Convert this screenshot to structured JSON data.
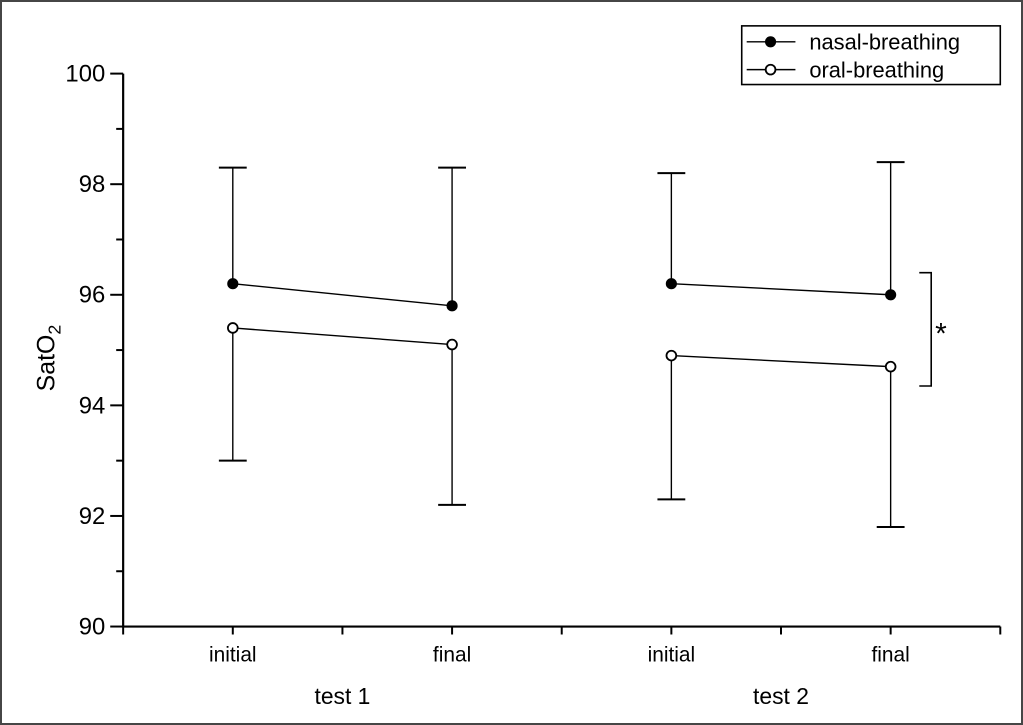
{
  "figure": {
    "background_color": "#ffffff",
    "border_color": "#464646",
    "ink_color": "#000000"
  },
  "chart_data": {
    "type": "line",
    "title": "",
    "ylabel": "SatO",
    "ylabel_subscript": "2",
    "xlabel": "",
    "ylim": [
      90,
      100
    ],
    "y_major_ticks": [
      90,
      92,
      94,
      96,
      98,
      100
    ],
    "y_minor_ticks": [
      91,
      93,
      95,
      97,
      99
    ],
    "x_range": [
      0,
      8
    ],
    "x_ticks": [
      0,
      1,
      2,
      3,
      4,
      5,
      6,
      7,
      8
    ],
    "grid": false,
    "x_tick_labels": [
      {
        "pos": 1,
        "label": "initial"
      },
      {
        "pos": 3,
        "label": "final"
      },
      {
        "pos": 5,
        "label": "initial"
      },
      {
        "pos": 7,
        "label": "final"
      }
    ],
    "x_group_labels": [
      {
        "pos": 2,
        "label": "test 1"
      },
      {
        "pos": 6,
        "label": "test 2"
      }
    ],
    "series": [
      {
        "name": "nasal-breathing",
        "marker": "filled-circle",
        "color": "#000000",
        "error_direction": "up",
        "segments": [
          {
            "group": "test 1",
            "x": [
              1,
              3
            ],
            "y": [
              96.2,
              95.8
            ],
            "error_cap_values": [
              98.3,
              98.3
            ]
          },
          {
            "group": "test 2",
            "x": [
              5,
              7
            ],
            "y": [
              96.2,
              96.0
            ],
            "error_cap_values": [
              98.2,
              98.4
            ]
          }
        ]
      },
      {
        "name": "oral-breathing",
        "marker": "open-circle",
        "color": "#000000",
        "error_direction": "down",
        "segments": [
          {
            "group": "test 1",
            "x": [
              1,
              3
            ],
            "y": [
              95.4,
              95.1
            ],
            "error_cap_values": [
              93.0,
              92.2
            ]
          },
          {
            "group": "test 2",
            "x": [
              5,
              7
            ],
            "y": [
              94.9,
              94.7
            ],
            "error_cap_values": [
              92.3,
              91.8
            ]
          }
        ]
      }
    ],
    "legend": {
      "position": "top-right",
      "entries": [
        {
          "label": "nasal-breathing",
          "marker": "filled-circle"
        },
        {
          "label": "oral-breathing",
          "marker": "open-circle"
        }
      ]
    },
    "annotations": [
      {
        "type": "significance-bracket",
        "symbol": "*",
        "side": "right",
        "x_pos": 7.37,
        "y_top": 96.4,
        "y_bottom": 94.35
      }
    ]
  }
}
